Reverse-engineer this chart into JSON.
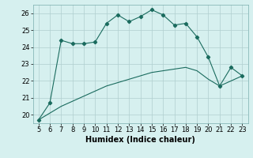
{
  "xlabel": "Humidex (Indice chaleur)",
  "x_values": [
    5,
    6,
    7,
    8,
    9,
    10,
    11,
    12,
    13,
    14,
    15,
    16,
    17,
    18,
    19,
    20,
    21,
    22,
    23
  ],
  "y_main": [
    19.7,
    20.7,
    24.4,
    24.2,
    24.2,
    24.3,
    25.4,
    25.9,
    25.5,
    25.8,
    26.2,
    25.9,
    25.3,
    25.4,
    24.6,
    23.4,
    21.7,
    22.8,
    22.3
  ],
  "y_ref": [
    19.7,
    20.1,
    20.5,
    20.8,
    21.1,
    21.4,
    21.7,
    21.9,
    22.1,
    22.3,
    22.5,
    22.6,
    22.7,
    22.8,
    22.6,
    22.1,
    21.7,
    22.0,
    22.3
  ],
  "line_color": "#1a6b5e",
  "bg_color": "#d6f0ef",
  "grid_color": "#b0cece",
  "ylim": [
    19.5,
    26.5
  ],
  "xlim": [
    4.5,
    23.5
  ],
  "yticks": [
    20,
    21,
    22,
    23,
    24,
    25,
    26
  ],
  "xticks": [
    5,
    6,
    7,
    8,
    9,
    10,
    11,
    12,
    13,
    14,
    15,
    16,
    17,
    18,
    19,
    20,
    21,
    22,
    23
  ],
  "tick_fontsize": 6.0,
  "xlabel_fontsize": 7.0
}
